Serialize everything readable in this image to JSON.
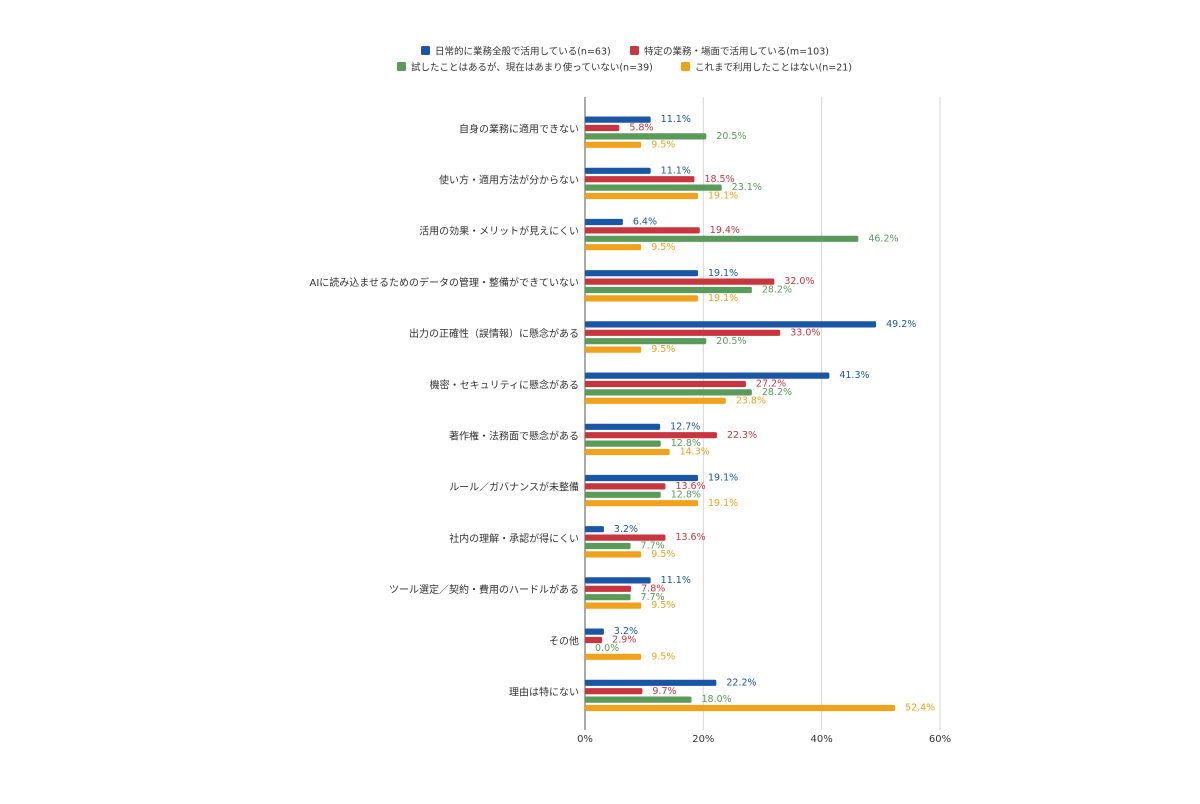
{
  "chart_data": {
    "type": "bar",
    "orientation": "horizontal",
    "categories": [
      "自身の業務に適用できない",
      "使い方・適用方法が分からない",
      "活用の効果・メリットが見えにくい",
      "AIに読み込ませるためのデータの管理・整備ができていない",
      "出力の正確性（誤情報）に懸念がある",
      "機密・セキュリティに懸念がある",
      "著作権・法務面で懸念がある",
      "ルール／ガバナンスが未整備",
      "社内の理解・承認が得にくい",
      "ツール選定／契約・費用のハードルがある",
      "その他",
      "理由は特にない"
    ],
    "series": [
      {
        "name": "日常的に業務全般で活用している(n=63)",
        "color": "#1a56a6",
        "values": [
          11.1,
          11.1,
          6.4,
          19.1,
          49.2,
          41.3,
          12.7,
          19.1,
          3.2,
          11.1,
          3.2,
          22.2
        ],
        "labels": [
          "11.1%",
          "11.1%",
          "6.4%",
          "19.1%",
          "49.2%",
          "41.3%",
          "12.7%",
          "19.1%",
          "3.2%",
          "11.1%",
          "3.2%",
          "22.2%"
        ]
      },
      {
        "name": "特定の業務・場面で活用している(m=103)",
        "color": "#c9353f",
        "values": [
          5.8,
          18.5,
          19.4,
          32.0,
          33.0,
          27.2,
          22.3,
          13.6,
          13.6,
          7.8,
          2.9,
          9.7
        ],
        "labels": [
          "5.8%",
          "18.5%",
          "19.4%",
          "32.0%",
          "33.0%",
          "27.2%",
          "22.3%",
          "13.6%",
          "13.6%",
          "7.8%",
          "2.9%",
          "9.7%"
        ]
      },
      {
        "name": "試したことはあるが、現在はあまり使っていない(n=39)",
        "color": "#5a9a5a",
        "values": [
          20.5,
          23.1,
          46.2,
          28.2,
          20.5,
          28.2,
          12.8,
          12.8,
          7.7,
          7.7,
          0.0,
          18.0
        ],
        "labels": [
          "20.5%",
          "23.1%",
          "46.2%",
          "28.2%",
          "20.5%",
          "28.2%",
          "12.8%",
          "12.8%",
          "7.7%",
          "7.7%",
          "0.0%",
          "18.0%"
        ]
      },
      {
        "name": "これまで利用したことはない(n=21)",
        "color": "#f0a21c",
        "values": [
          9.5,
          19.1,
          9.5,
          19.1,
          9.5,
          23.8,
          14.3,
          19.1,
          9.5,
          9.5,
          9.5,
          52.4
        ],
        "labels": [
          "9.5%",
          "19.1%",
          "9.5%",
          "19.1%",
          "9.5%",
          "23.8%",
          "14.3%",
          "19.1%",
          "9.5%",
          "9.5%",
          "9.5%",
          "52.4%"
        ]
      }
    ],
    "x_ticks": [
      "0%",
      "20%",
      "40%",
      "60%"
    ],
    "xlim": [
      0,
      60
    ],
    "grid": true,
    "legend_position": "top"
  }
}
